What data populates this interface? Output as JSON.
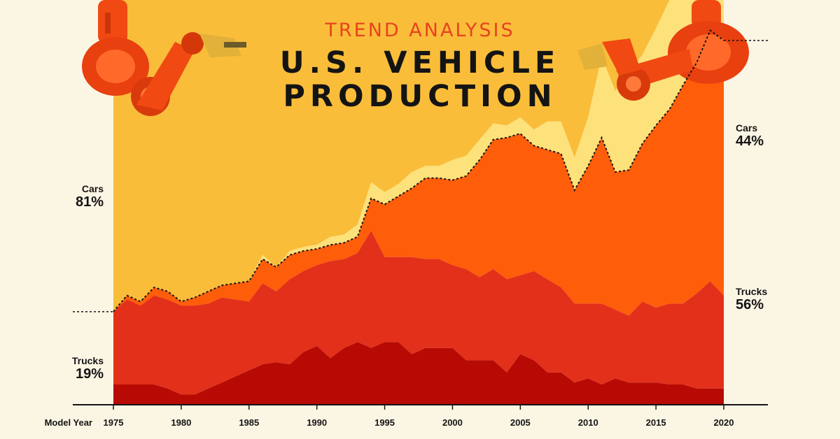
{
  "header": {
    "subtitle": "TREND ANALYSIS",
    "title_line1": "U.S. VEHICLE",
    "title_line2": "PRODUCTION"
  },
  "labels": {
    "left_cars_name": "Cars",
    "left_cars_pct": "81%",
    "left_trucks_name": "Trucks",
    "left_trucks_pct": "19%",
    "right_cars_name": "Cars",
    "right_cars_pct": "44%",
    "right_trucks_name": "Trucks",
    "right_trucks_pct": "56%"
  },
  "colors": {
    "background": "#fbf5e4",
    "cars_sedan_wagon": "#f9bd3a",
    "cars_crossover": "#fde17a",
    "trucks_suv": "#fe5d0a",
    "trucks_pickup": "#e3301a",
    "trucks_van": "#b80a04",
    "divider": "#141414",
    "robot_arm": "#f04a12"
  },
  "chart_data": {
    "type": "area",
    "stacking": "percent",
    "xlabel": "Model Year",
    "x_ticks": [
      1975,
      1980,
      1985,
      1990,
      1995,
      2000,
      2005,
      2010,
      2015,
      2020
    ],
    "x": [
      1975,
      1976,
      1977,
      1978,
      1979,
      1980,
      1981,
      1982,
      1983,
      1984,
      1985,
      1986,
      1987,
      1988,
      1989,
      1990,
      1991,
      1992,
      1993,
      1994,
      1995,
      1996,
      1997,
      1998,
      1999,
      2000,
      2001,
      2002,
      2003,
      2004,
      2005,
      2006,
      2007,
      2008,
      2009,
      2010,
      2011,
      2012,
      2013,
      2014,
      2015,
      2016,
      2017,
      2018,
      2019,
      2020
    ],
    "ylim": [
      0,
      100
    ],
    "series": [
      {
        "group": "Trucks",
        "values": [
          5,
          5,
          5,
          5,
          4,
          2.5,
          2.5,
          4,
          5.5,
          7,
          8.5,
          10,
          10.5,
          10,
          13,
          14.5,
          11.5,
          14,
          15.5,
          14,
          15.5,
          15.5,
          12.5,
          14,
          14,
          14,
          11,
          11,
          11,
          8,
          12.5,
          11,
          8,
          8,
          5.5,
          6.5,
          5,
          6.5,
          5.5,
          5.5,
          5.5,
          5,
          5,
          4,
          4,
          4
        ]
      },
      {
        "group": "Trucks",
        "values": [
          18,
          21,
          19.5,
          22,
          22,
          22,
          22,
          21,
          21,
          19,
          17,
          20,
          17.5,
          21,
          20,
          20,
          24,
          22,
          22,
          29,
          21,
          21,
          24,
          22,
          22,
          20.5,
          22.5,
          20.5,
          22.5,
          23,
          19.5,
          22,
          23,
          21,
          19.5,
          18.5,
          20,
          17,
          16.5,
          20,
          18.5,
          20,
          20,
          23.5,
          26.5,
          23
        ]
      },
      {
        "group": "Trucks",
        "values": [
          0,
          1,
          1,
          2,
          2,
          1,
          2,
          3,
          3,
          4,
          5,
          6,
          6,
          6,
          5,
          4,
          4,
          4,
          4,
          8,
          13,
          15,
          17,
          20,
          20,
          21,
          23,
          29,
          32,
          35,
          35,
          31,
          32,
          33,
          28,
          34,
          41,
          34,
          36,
          39,
          45,
          48,
          54,
          57,
          62,
          63
        ]
      },
      {
        "group": "Cars",
        "values": [
          0,
          0,
          0,
          0,
          0,
          0,
          0,
          0,
          0,
          0,
          0,
          0,
          0,
          0,
          0,
          0,
          0,
          0,
          0,
          0,
          0,
          0,
          0,
          0,
          0,
          0,
          0,
          0,
          0,
          0,
          0,
          0,
          0,
          0,
          0,
          0,
          0,
          0,
          0,
          0,
          0,
          0,
          0,
          0,
          0,
          0
        ]
      },
      {
        "group": "Cars",
        "values": [
          0,
          0,
          0,
          0,
          0,
          0,
          0,
          0,
          0,
          0,
          0,
          0,
          0,
          0,
          0,
          0,
          0,
          0,
          0,
          0,
          0,
          0,
          0,
          0,
          0,
          0,
          0,
          0,
          0,
          0,
          0,
          0,
          0,
          0,
          0,
          0,
          0,
          0,
          0,
          0,
          0,
          0,
          0,
          0,
          0,
          0
        ]
      }
    ],
    "series_extra_cars_crossover": [
      0,
      0,
      0,
      0,
      0,
      0,
      0,
      0,
      0,
      0,
      0,
      1,
      0,
      1,
      1,
      1,
      2,
      2,
      3,
      4,
      3,
      3,
      4,
      3,
      3,
      5,
      5,
      5,
      4,
      3,
      4,
      4,
      7,
      8,
      8,
      12,
      20,
      20,
      24,
      22,
      24,
      27,
      28,
      30,
      31,
      33
    ],
    "trucks_total_share": {
      "start": 19,
      "end": 56
    },
    "cars_total_share": {
      "start": 81,
      "end": 44
    },
    "grid": false,
    "legend": "none"
  }
}
